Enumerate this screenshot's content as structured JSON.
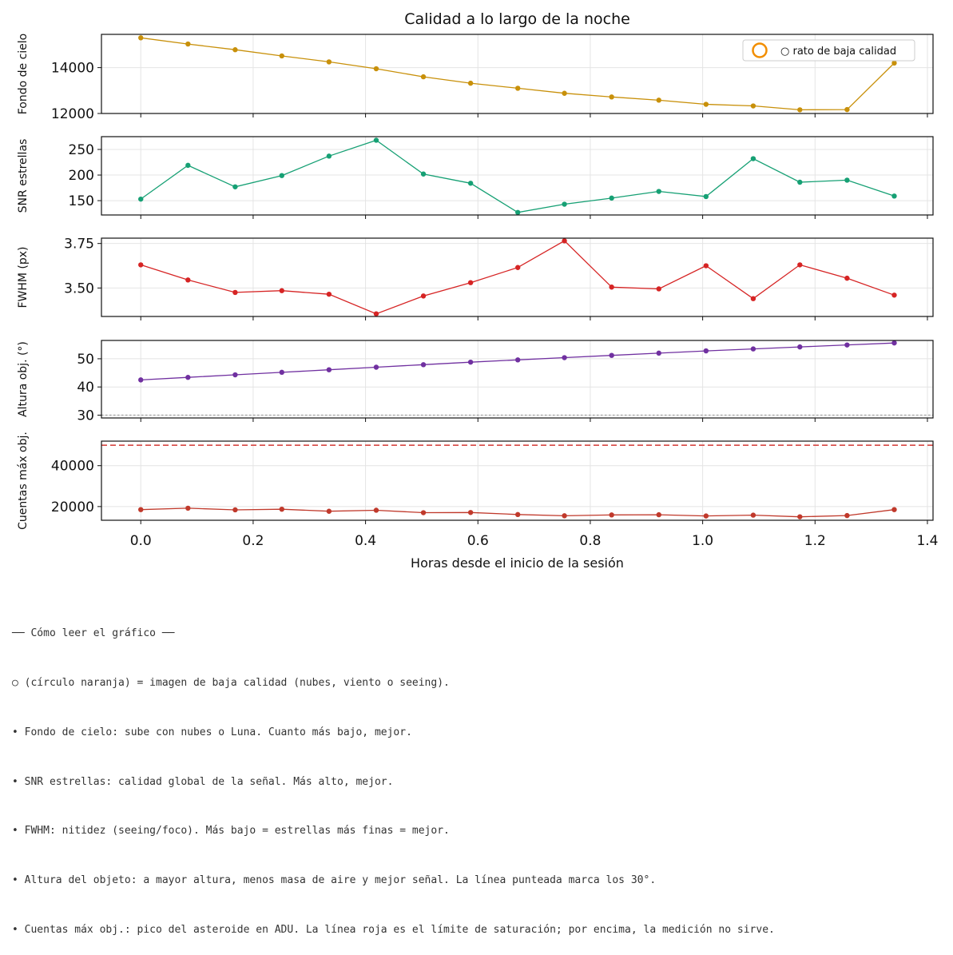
{
  "chart_data": {
    "type": "line",
    "title": "Calidad a lo largo de la noche",
    "xlabel": "Horas desde el inicio de la sesión",
    "xlim": [
      -0.07,
      1.41
    ],
    "x_ticks": [
      "0.0",
      "0.2",
      "0.4",
      "0.6",
      "0.8",
      "1.0",
      "1.2",
      "1.4"
    ],
    "x": [
      0.0,
      0.084,
      0.168,
      0.251,
      0.335,
      0.419,
      0.503,
      0.587,
      0.671,
      0.754,
      0.838,
      0.922,
      1.006,
      1.09,
      1.173,
      1.257,
      1.341
    ],
    "grid": true,
    "legend": {
      "label": "○ rato de baja calidad",
      "position": "top-right",
      "marker_color": "#f28e00"
    },
    "panels": [
      {
        "ylabel": "Fondo de cielo",
        "color": "#c8900a",
        "ylim": [
          12000,
          15450
        ],
        "y_ticks": [
          "12000",
          "14000"
        ],
        "values": [
          15300,
          15030,
          14780,
          14510,
          14250,
          13950,
          13600,
          13320,
          13100,
          12880,
          12720,
          12580,
          12400,
          12330,
          12160,
          12170,
          14200
        ]
      },
      {
        "ylabel": "SNR estrellas",
        "color": "#16a074",
        "ylim": [
          122,
          275
        ],
        "y_ticks": [
          "150",
          "200",
          "250"
        ],
        "values": [
          153,
          219,
          177,
          199,
          237,
          268,
          202,
          184,
          127,
          143,
          155,
          168,
          158,
          232,
          186,
          190,
          159
        ]
      },
      {
        "ylabel": "FWHM (px)",
        "color": "#d62424",
        "ylim": [
          3.34,
          3.78
        ],
        "y_ticks": [
          "3.50",
          "3.75"
        ],
        "values": [
          3.63,
          3.545,
          3.475,
          3.485,
          3.465,
          3.355,
          3.455,
          3.53,
          3.615,
          3.765,
          3.505,
          3.495,
          3.625,
          3.44,
          3.63,
          3.555,
          3.46
        ]
      },
      {
        "ylabel": "Altura obj. (°)",
        "color": "#7030a0",
        "ylim": [
          29,
          56.5
        ],
        "y_ticks": [
          "30",
          "40",
          "50"
        ],
        "reference_line": 30,
        "values": [
          42.5,
          43.4,
          44.3,
          45.2,
          46.1,
          47.0,
          47.9,
          48.8,
          49.6,
          50.4,
          51.2,
          52.0,
          52.8,
          53.5,
          54.2,
          54.9,
          55.6
        ]
      },
      {
        "ylabel": "Cuentas máx obj.",
        "color": "#c0392b",
        "ylim": [
          13300,
          52000
        ],
        "y_ticks": [
          "20000",
          "40000"
        ],
        "saturation_limit": 50000,
        "values": [
          18500,
          19200,
          18400,
          18700,
          17700,
          18200,
          17000,
          17100,
          16100,
          15500,
          15900,
          16000,
          15400,
          15800,
          15000,
          15600,
          18500
        ]
      }
    ]
  },
  "notes": [
    "── Cómo leer el gráfico ──",
    "○ (círculo naranja) = imagen de baja calidad (nubes, viento o seeing).",
    "• Fondo de cielo: sube con nubes o Luna. Cuanto más bajo, mejor.",
    "• SNR estrellas: calidad global de la señal. Más alto, mejor.",
    "• FWHM: nitidez (seeing/foco). Más bajo = estrellas más finas = mejor.",
    "• Altura del objeto: a mayor altura, menos masa de aire y mejor señal. La línea punteada marca los 30°.",
    "• Cuentas máx obj.: pico del asteroide en ADU. La línea roja es el límite de saturación; por encima, la medición no sirve."
  ]
}
